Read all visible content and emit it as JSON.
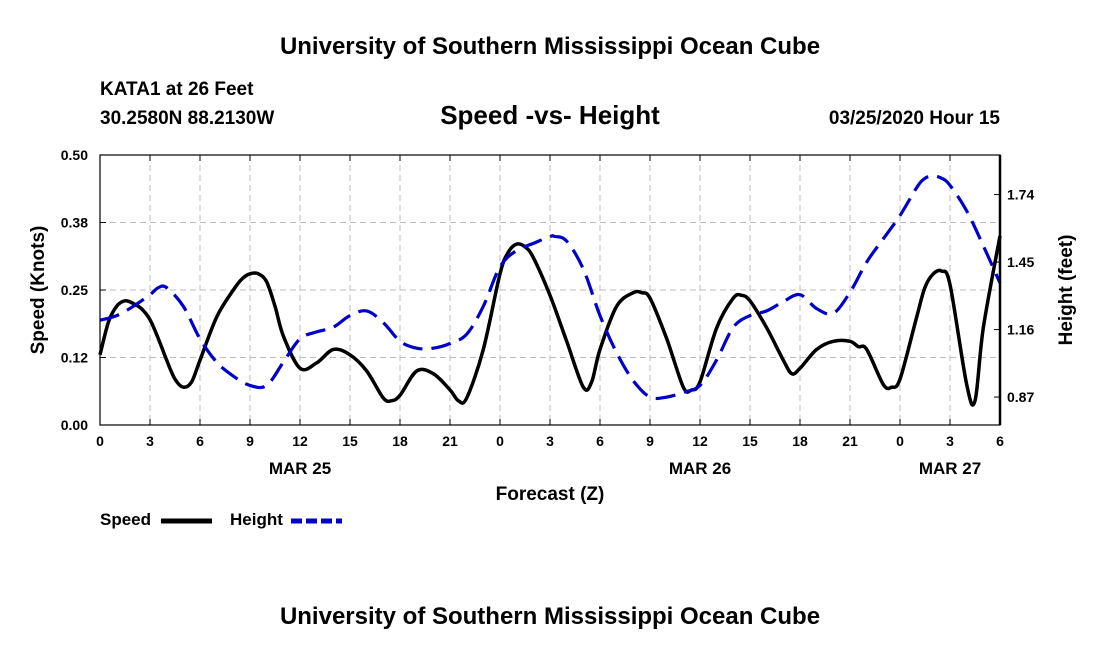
{
  "page": {
    "header": "University of Southern Mississippi Ocean Cube",
    "footer": "University of Southern Mississippi Ocean Cube",
    "station": "KATA1 at 26 Feet",
    "location": "30.2580N 88.2130W",
    "run_time": "03/25/2020 Hour 15"
  },
  "colors": {
    "speed": "#000000",
    "height": "#0000cc",
    "grid": "#bdbdbd"
  },
  "chart_data": {
    "type": "line",
    "title": "Speed -vs- Height",
    "xlabel": "Forecast (Z)",
    "ylabel": "Speed (Knots)",
    "y2label": "Height (feet)",
    "xlim": [
      0,
      54
    ],
    "ylim": [
      0,
      0.5
    ],
    "y2lim": [
      0.75,
      1.91
    ],
    "x_ticks": [
      0,
      3,
      6,
      9,
      12,
      15,
      18,
      21,
      24,
      27,
      30,
      33,
      36,
      39,
      42,
      45,
      48,
      51,
      54
    ],
    "x_tick_labels": [
      "0",
      "3",
      "6",
      "9",
      "12",
      "15",
      "18",
      "21",
      "0",
      "3",
      "6",
      "9",
      "12",
      "15",
      "18",
      "21",
      "0",
      "3",
      "6"
    ],
    "y_ticks": [
      0,
      0.125,
      0.25,
      0.375,
      0.5
    ],
    "y_tick_labels": [
      "0.00",
      "0.12",
      "0.25",
      "0.38",
      "0.50"
    ],
    "y2_ticks": [
      0.87,
      1.16,
      1.45,
      1.74
    ],
    "y2_tick_labels": [
      "0.87",
      "1.16",
      "1.45",
      "1.74"
    ],
    "date_labels": [
      {
        "x": 12,
        "label": "MAR 25"
      },
      {
        "x": 36,
        "label": "MAR 26"
      },
      {
        "x": 51,
        "label": "MAR 27"
      }
    ],
    "grid": true,
    "legend": "bottom-left",
    "series": [
      {
        "name": "Speed",
        "axis": "left",
        "style": "solid",
        "x": [
          0,
          0.5,
          1,
          1.5,
          2,
          2.5,
          3,
          3.5,
          4,
          4.5,
          5,
          5.5,
          6,
          7,
          8,
          8.5,
          9,
          9.5,
          10,
          10.5,
          11,
          12,
          13,
          14,
          15,
          16,
          17,
          17.5,
          18,
          19,
          20,
          21,
          21.5,
          22,
          23,
          24,
          24.5,
          25,
          25.5,
          26,
          27,
          28,
          29,
          29.5,
          30,
          31,
          32,
          32.5,
          33,
          34,
          35,
          35.5,
          36,
          37,
          38,
          38.5,
          39,
          40,
          41,
          41.5,
          42,
          43,
          44,
          45,
          45.5,
          46,
          47,
          47.5,
          48,
          49,
          49.5,
          50,
          50.5,
          51,
          52,
          52.5,
          53,
          54
        ],
        "values": [
          0.13,
          0.19,
          0.22,
          0.23,
          0.225,
          0.215,
          0.195,
          0.16,
          0.12,
          0.085,
          0.07,
          0.08,
          0.12,
          0.2,
          0.25,
          0.27,
          0.28,
          0.28,
          0.265,
          0.22,
          0.165,
          0.105,
          0.115,
          0.14,
          0.13,
          0.1,
          0.05,
          0.045,
          0.055,
          0.1,
          0.095,
          0.065,
          0.045,
          0.05,
          0.14,
          0.28,
          0.32,
          0.335,
          0.33,
          0.31,
          0.24,
          0.155,
          0.07,
          0.08,
          0.14,
          0.22,
          0.245,
          0.245,
          0.235,
          0.16,
          0.07,
          0.065,
          0.08,
          0.18,
          0.235,
          0.24,
          0.23,
          0.18,
          0.12,
          0.095,
          0.105,
          0.14,
          0.155,
          0.155,
          0.145,
          0.14,
          0.075,
          0.07,
          0.085,
          0.2,
          0.255,
          0.28,
          0.285,
          0.26,
          0.075,
          0.045,
          0.18,
          0.35
        ]
      },
      {
        "name": "Height",
        "axis": "right",
        "style": "dashed",
        "x": [
          0,
          1,
          2,
          3,
          3.5,
          4,
          5,
          6,
          7,
          8,
          9,
          10,
          11,
          12,
          13,
          14,
          15,
          16,
          17,
          18,
          19,
          20,
          21,
          22,
          23,
          24,
          25,
          26,
          27,
          27.3,
          28,
          29,
          30,
          31,
          32,
          33,
          34,
          35,
          36,
          37,
          38,
          39,
          40,
          41,
          42,
          43,
          44,
          45,
          46,
          47,
          48,
          49,
          49.5,
          50,
          50.5,
          51,
          52,
          53,
          54
        ],
        "values": [
          1.2,
          1.22,
          1.26,
          1.31,
          1.34,
          1.34,
          1.26,
          1.12,
          1.02,
          0.96,
          0.92,
          0.92,
          1.02,
          1.12,
          1.15,
          1.17,
          1.22,
          1.24,
          1.19,
          1.11,
          1.08,
          1.08,
          1.1,
          1.14,
          1.26,
          1.43,
          1.5,
          1.53,
          1.56,
          1.56,
          1.54,
          1.42,
          1.22,
          1.06,
          0.94,
          0.87,
          0.87,
          0.89,
          0.92,
          1.03,
          1.17,
          1.22,
          1.24,
          1.28,
          1.31,
          1.25,
          1.23,
          1.32,
          1.45,
          1.55,
          1.65,
          1.77,
          1.81,
          1.82,
          1.81,
          1.78,
          1.67,
          1.52,
          1.36
        ]
      }
    ]
  }
}
